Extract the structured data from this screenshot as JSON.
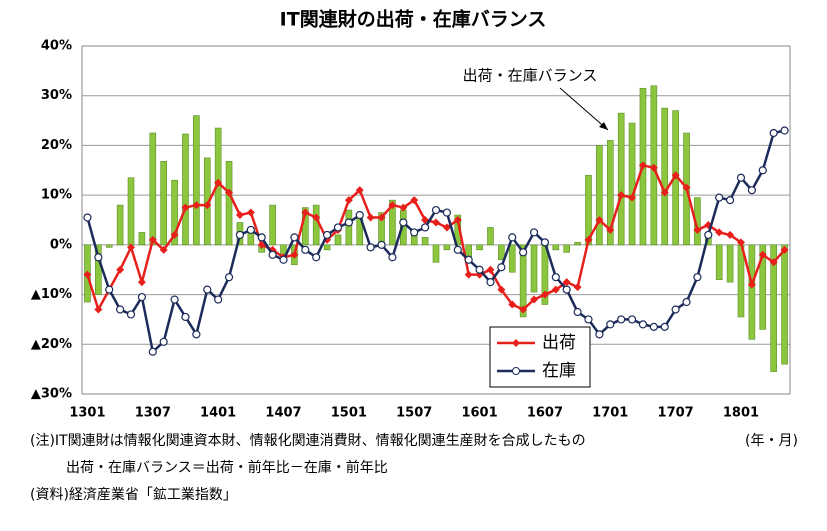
{
  "chart_data": {
    "type": "bar_line",
    "title": "IT関連財の出荷・在庫バランス",
    "categories": [
      "1301",
      null,
      null,
      null,
      null,
      null,
      "1307",
      null,
      null,
      null,
      null,
      null,
      "1401",
      null,
      null,
      null,
      null,
      null,
      "1407",
      null,
      null,
      null,
      null,
      null,
      "1501",
      null,
      null,
      null,
      null,
      null,
      "1507",
      null,
      null,
      null,
      null,
      null,
      "1601",
      null,
      null,
      null,
      null,
      null,
      "1607",
      null,
      null,
      null,
      null,
      null,
      "1701",
      null,
      null,
      null,
      null,
      null,
      "1707",
      null,
      null,
      null,
      null,
      null,
      "1801",
      null,
      null,
      null,
      null
    ],
    "series": [
      {
        "name": "出荷・在庫バランス",
        "type": "bar",
        "color": "#8cc63f",
        "values": [
          -11.5,
          -10,
          -0.5,
          8,
          13.5,
          2.5,
          22.5,
          16.8,
          13,
          22.3,
          26,
          17.5,
          23.5,
          16.8,
          4.5,
          3.5,
          -1.5,
          8,
          -2,
          -4,
          7.5,
          8,
          -1,
          2,
          7,
          5.5,
          -1,
          6.5,
          9,
          7,
          3,
          1.5,
          -3.5,
          -1,
          6,
          -3,
          -1,
          3.5,
          -3,
          -5.5,
          -14.5,
          -9.5,
          -12,
          -1,
          -1.5,
          0.5,
          14,
          20,
          21,
          26.5,
          24.5,
          31.5,
          32,
          27.5,
          27,
          22.5,
          9.5,
          1.5,
          -7,
          -7.5,
          -14.5,
          -19,
          -17,
          -25.5,
          -24
        ]
      },
      {
        "name": "出荷",
        "type": "line",
        "color": "#e8201c",
        "marker": "diamond",
        "values": [
          -6,
          -13,
          -9,
          -5,
          -0.5,
          -7.5,
          1,
          -1,
          2,
          7.5,
          8,
          8,
          12.5,
          10.5,
          6,
          6.5,
          0,
          -1,
          -2.5,
          -2,
          6.5,
          5.5,
          1,
          3,
          9,
          11,
          5.5,
          5.5,
          8,
          7.5,
          9,
          5,
          4.5,
          3.5,
          5,
          -6,
          -6,
          -5,
          -9,
          -12,
          -13,
          -11,
          -10,
          -9,
          -7.5,
          -8.5,
          1,
          5,
          3,
          10,
          9.5,
          16,
          15.5,
          10.5,
          14,
          11.5,
          3,
          4,
          2.5,
          2,
          0.5,
          -8,
          -2,
          -3.5,
          -1
        ]
      },
      {
        "name": "在庫",
        "type": "line",
        "color": "#1c2b5a",
        "marker": "circle",
        "values": [
          5.5,
          -2.5,
          -9,
          -13,
          -14,
          -10.5,
          -21.5,
          -19.5,
          -11,
          -14.5,
          -18,
          -9,
          -11,
          -6.5,
          2,
          3,
          1.5,
          -2,
          -3,
          1.5,
          -1,
          -2.5,
          2,
          3.5,
          4.5,
          6,
          -0.5,
          0,
          -2.5,
          4.5,
          2.5,
          3.5,
          7,
          6.5,
          -1,
          -3,
          -5,
          -7.5,
          -4.5,
          1.5,
          -1.5,
          2.5,
          0.5,
          -6.5,
          -9,
          -13.5,
          -15,
          -18,
          -16,
          -15,
          -15,
          -16,
          -16.5,
          -16.5,
          -13,
          -11.5,
          -6.5,
          2,
          9.5,
          9,
          13.5,
          11,
          15,
          22.5,
          23
        ]
      }
    ],
    "ylim": [
      -30,
      40
    ],
    "yticks": [
      {
        "value": 40,
        "label": "40%"
      },
      {
        "value": 30,
        "label": "30%"
      },
      {
        "value": 20,
        "label": "20%"
      },
      {
        "value": 10,
        "label": "10%"
      },
      {
        "value": 0,
        "label": "0%"
      },
      {
        "value": -10,
        "label": "▲10%"
      },
      {
        "value": -20,
        "label": "▲20%"
      },
      {
        "value": -30,
        "label": "▲30%"
      }
    ],
    "grid": true,
    "x_unit_label": "(年・月)",
    "notes": [
      "(注)IT関連財は情報化関連資本財、情報化関連消費財、情報化関連生産財を合成したもの",
      "出荷・在庫バランス＝出荷・前年比－在庫・前年比",
      "(資料)経済産業省「鉱工業指数」"
    ]
  }
}
